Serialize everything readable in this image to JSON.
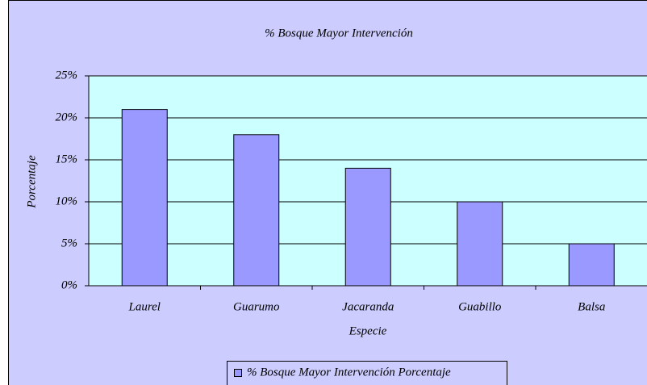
{
  "chart_data": {
    "type": "bar",
    "title": "% Bosque Mayor Intervención",
    "x_label": "Especie",
    "y_label": "Porcentaje",
    "categories": [
      "Laurel",
      "Guarumo",
      "Jacaranda",
      "Guabillo",
      "Balsa"
    ],
    "series": [
      {
        "name": "% Bosque Mayor Intervención Porcentaje",
        "color": "#9999ff",
        "values": [
          21,
          18,
          14,
          10,
          5
        ]
      }
    ],
    "ylim": [
      0,
      25
    ],
    "yticks": [
      {
        "value": 0,
        "label": "0%"
      },
      {
        "value": 5,
        "label": "5%"
      },
      {
        "value": 10,
        "label": "10%"
      },
      {
        "value": 15,
        "label": "15%"
      },
      {
        "value": 20,
        "label": "20%"
      },
      {
        "value": 25,
        "label": "25%"
      }
    ],
    "grid": true,
    "legend": "bottom"
  }
}
